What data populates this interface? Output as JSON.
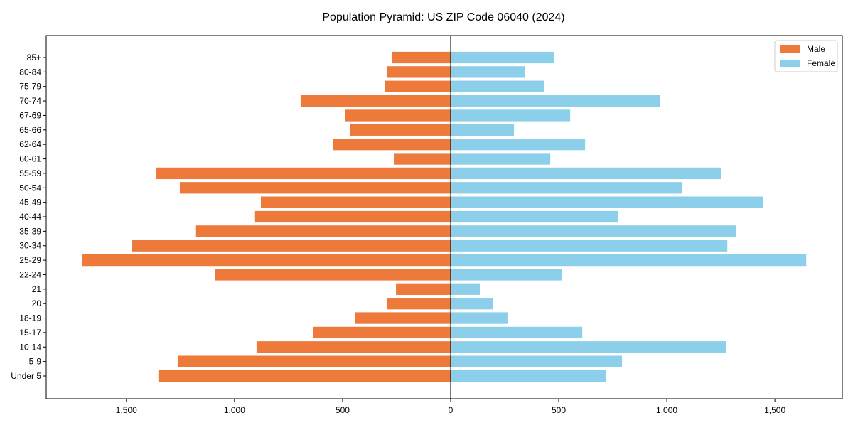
{
  "chart_data": {
    "type": "bar",
    "orientation": "horizontal",
    "title": "Population Pyramid: US ZIP Code 06040 (2024)",
    "xlabel": "",
    "ylabel": "",
    "xlim": [
      -1871,
      1812
    ],
    "xticks": [
      -1500,
      -1000,
      -500,
      0,
      500,
      1000,
      1500
    ],
    "xtick_labels": [
      "1,500",
      "1,000",
      "500",
      "0",
      "500",
      "1,000",
      "1,500"
    ],
    "grid": false,
    "legend_position": "top-right",
    "categories": [
      "85+",
      "80-84",
      "75-79",
      "70-74",
      "67-69",
      "65-66",
      "62-64",
      "60-61",
      "55-59",
      "50-54",
      "45-49",
      "40-44",
      "35-39",
      "30-34",
      "25-29",
      "22-24",
      "21",
      "20",
      "18-19",
      "15-17",
      "10-14",
      "5-9",
      "Under 5"
    ],
    "series": [
      {
        "name": "Male",
        "color": "#ED7A3B",
        "side": "left",
        "values": [
          273,
          296,
          303,
          694,
          487,
          464,
          543,
          263,
          1362,
          1253,
          878,
          905,
          1178,
          1474,
          1704,
          1089,
          253,
          296,
          441,
          635,
          898,
          1263,
          1352
        ]
      },
      {
        "name": "Female",
        "color": "#8BCFEB",
        "side": "right",
        "values": [
          477,
          342,
          431,
          970,
          553,
          293,
          622,
          461,
          1253,
          1069,
          1444,
          773,
          1322,
          1280,
          1645,
          513,
          135,
          194,
          263,
          609,
          1273,
          793,
          720
        ]
      }
    ]
  }
}
